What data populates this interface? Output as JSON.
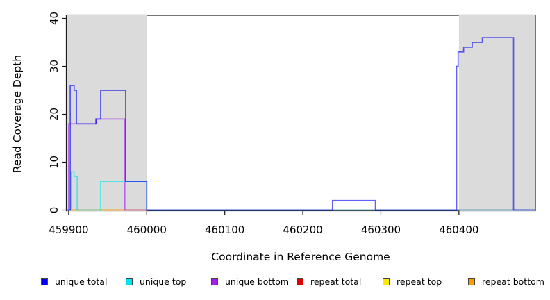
{
  "chart_data": {
    "type": "line",
    "subtype": "step-coverage",
    "title": "",
    "xlabel": "Coordinate in Reference Genome",
    "ylabel": "Read Coverage Depth",
    "xlim": [
      459897,
      460498
    ],
    "ylim": [
      0,
      40
    ],
    "x_ticks": [
      459900,
      460000,
      460100,
      460200,
      460300,
      460400
    ],
    "y_ticks": [
      0,
      10,
      20,
      30,
      40
    ],
    "grid": false,
    "legend_position": "bottom",
    "band_color": "#DBDBDB",
    "axis_color": "#1a1a1a",
    "shaded_regions": [
      {
        "x_start": 459897,
        "x_end": 460000
      },
      {
        "x_start": 460400,
        "x_end": 460498
      }
    ],
    "series": [
      {
        "name": "unique total",
        "color": "#0000EE",
        "step_points": [
          [
            459897,
            0
          ],
          [
            459902,
            26
          ],
          [
            459907,
            25
          ],
          [
            459910,
            18
          ],
          [
            459935,
            19
          ],
          [
            459941,
            25
          ],
          [
            459973,
            6
          ],
          [
            460000,
            0
          ],
          [
            460238,
            2
          ],
          [
            460293,
            0
          ],
          [
            460397,
            30
          ],
          [
            460399,
            33
          ],
          [
            460406,
            34
          ],
          [
            460417,
            35
          ],
          [
            460430,
            36
          ],
          [
            460470,
            0
          ]
        ]
      },
      {
        "name": "unique top",
        "color": "#00E5EE",
        "step_points": [
          [
            459897,
            0
          ],
          [
            459903,
            8
          ],
          [
            459907,
            7
          ],
          [
            459911,
            0
          ],
          [
            459941,
            6
          ],
          [
            460000,
            0
          ]
        ]
      },
      {
        "name": "unique bottom",
        "color": "#A020F0",
        "step_points": [
          [
            459897,
            0
          ],
          [
            459900,
            18
          ],
          [
            459935,
            19
          ],
          [
            459972,
            0
          ]
        ]
      },
      {
        "name": "repeat total",
        "color": "#E00000",
        "step_points": [
          [
            459897,
            0
          ]
        ]
      },
      {
        "name": "repeat top",
        "color": "#FFE800",
        "step_points": [
          [
            459897,
            0
          ]
        ]
      },
      {
        "name": "repeat bottom",
        "color": "#FF9D00",
        "step_points": [
          [
            459897,
            0
          ]
        ]
      }
    ],
    "draw_order": [
      "repeat total",
      "repeat top",
      "repeat bottom",
      "unique bottom",
      "unique top",
      "unique total"
    ]
  }
}
